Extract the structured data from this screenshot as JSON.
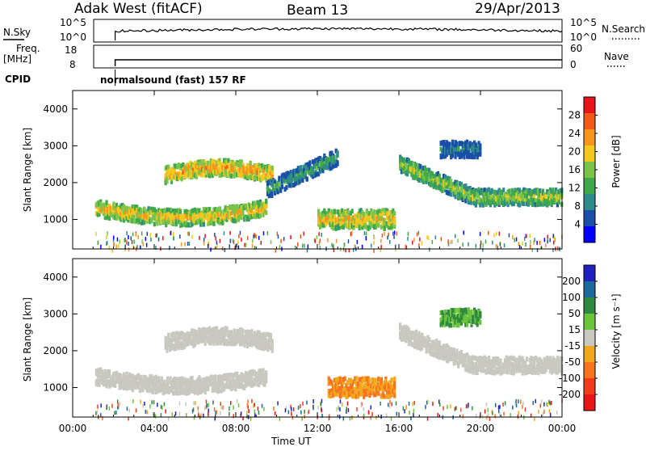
{
  "header": {
    "station_title": "Adak West (fitACF)",
    "beam_label": "Beam 13",
    "date_label": "29/Apr/2013"
  },
  "status_panel": {
    "nsky_label": "N.Sky",
    "nsky_ticks": [
      "10^5",
      "10^0"
    ],
    "nsearch_label": "N.Search",
    "nsearch_ticks": [
      "10^5",
      "10^0"
    ],
    "freq_label_1": "Freq.",
    "freq_label_2": "[MHz]",
    "freq_ticks": [
      "18",
      "8"
    ],
    "nave_label": "Nave",
    "nave_ticks": [
      "60",
      "0"
    ],
    "cpid_label": "CPID",
    "cpid_value": "normalsound (fast) 157 RF",
    "data_start_hour": 1.1
  },
  "chart_data": [
    {
      "type": "heatmap",
      "name": "power",
      "ylabel": "Slant Range [km]",
      "xlabel": "",
      "xlim": [
        0,
        24
      ],
      "ylim": [
        200,
        4500
      ],
      "x_tick_labels": [
        "00:00",
        "04:00",
        "08:00",
        "12:00",
        "16:00",
        "20:00",
        "00:00"
      ],
      "y_tick_labels": [
        "1000",
        "2000",
        "3000",
        "4000"
      ],
      "colorbar": {
        "label": "Power [dB]",
        "ticks": [
          "4",
          "8",
          "12",
          "16",
          "20",
          "24",
          "28"
        ],
        "range": [
          0,
          32
        ],
        "colors": [
          "#0000ff",
          "#1a4fa8",
          "#2f8a8a",
          "#3ea84a",
          "#7bc44a",
          "#f2c81e",
          "#f7941d",
          "#f25a1a",
          "#e8141a"
        ]
      },
      "echo_regions": [
        {
          "x": [
            1.1,
            9.5
          ],
          "y_center": 1300,
          "power": 22,
          "desc": "main band"
        },
        {
          "x": [
            4.5,
            9.8
          ],
          "y_center": 2300,
          "power": 24,
          "desc": "upper arc"
        },
        {
          "x": [
            9.5,
            13.0
          ],
          "y_center": 1800,
          "power": 12,
          "desc": "rising trail"
        },
        {
          "x": [
            12.0,
            15.8
          ],
          "y_center": 1000,
          "power": 22,
          "desc": "midday patch"
        },
        {
          "x": [
            16.0,
            24.0
          ],
          "y_center": 1600,
          "power": 18,
          "desc": "afternoon band"
        },
        {
          "x": [
            18.0,
            20.0
          ],
          "y_center": 2900,
          "power": 8,
          "desc": "high echo"
        }
      ]
    },
    {
      "type": "heatmap",
      "name": "velocity",
      "ylabel": "Slant Range [km]",
      "xlabel": "Time UT",
      "xlim": [
        0,
        24
      ],
      "ylim": [
        200,
        4500
      ],
      "x_tick_labels": [
        "00:00",
        "04:00",
        "08:00",
        "12:00",
        "16:00",
        "20:00",
        "00:00"
      ],
      "y_tick_labels": [
        "1000",
        "2000",
        "3000",
        "4000"
      ],
      "colorbar": {
        "label": "Velocity [m s⁻¹]",
        "ticks": [
          "200",
          "100",
          "50",
          "15",
          "-15",
          "-50",
          "-100",
          "-200"
        ],
        "colors": [
          "#2020c0",
          "#1a6a9a",
          "#2e8a3e",
          "#6cc43a",
          "#c8c8c0",
          "#f2a81e",
          "#f7741d",
          "#f23a1a",
          "#e8141a"
        ]
      },
      "echo_regions": [
        {
          "x": [
            1.1,
            9.5
          ],
          "y_center": 1300,
          "velocity": 0,
          "desc": "ground scatter band"
        },
        {
          "x": [
            4.5,
            9.8
          ],
          "y_center": 2300,
          "velocity": 0,
          "desc": "upper arc"
        },
        {
          "x": [
            12.5,
            15.8
          ],
          "y_center": 1000,
          "velocity": -50,
          "desc": "receding patch"
        },
        {
          "x": [
            16.0,
            24.0
          ],
          "y_center": 1600,
          "velocity": 0,
          "desc": "afternoon band"
        },
        {
          "x": [
            18.0,
            20.0
          ],
          "y_center": 2900,
          "velocity": 30,
          "desc": "high echo"
        }
      ]
    }
  ]
}
